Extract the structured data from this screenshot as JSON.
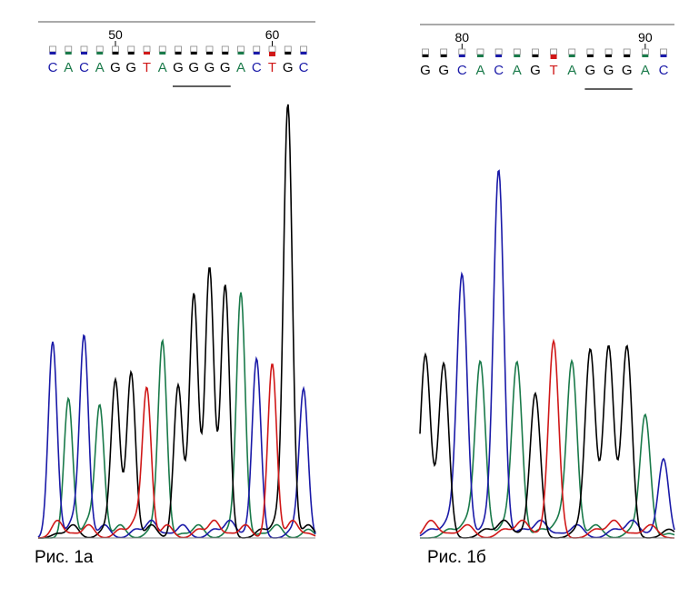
{
  "colors": {
    "A": "#1a7a4a",
    "C": "#1a1aa8",
    "G": "#000000",
    "T": "#d01818"
  },
  "panels": [
    {
      "id": "a",
      "caption": "Рис. 1а",
      "sequence": [
        "C",
        "A",
        "C",
        "A",
        "G",
        "G",
        "T",
        "A",
        "G",
        "G",
        "G",
        "G",
        "A",
        "C",
        "T",
        "G",
        "C"
      ],
      "position_labels": [
        {
          "text": "50",
          "base_index": 4
        },
        {
          "text": "60",
          "base_index": 14
        }
      ],
      "underline": {
        "from": 8,
        "to": 11
      },
      "highlighted_base": 14,
      "peak_heights": [
        0.45,
        0.32,
        0.46,
        0.3,
        0.36,
        0.38,
        0.34,
        0.45,
        0.35,
        0.56,
        0.62,
        0.58,
        0.56,
        0.41,
        0.4,
        0.99,
        0.34
      ]
    },
    {
      "id": "b",
      "caption": "Рис. 1б",
      "sequence": [
        "G",
        "G",
        "C",
        "A",
        "C",
        "A",
        "G",
        "T",
        "A",
        "G",
        "G",
        "G",
        "A",
        "C"
      ],
      "position_labels": [
        {
          "text": "80",
          "base_index": 2
        },
        {
          "text": "90",
          "base_index": 12
        }
      ],
      "underline": {
        "from": 9,
        "to": 11
      },
      "highlighted_base": 7,
      "peak_heights": [
        0.42,
        0.4,
        0.6,
        0.4,
        0.84,
        0.4,
        0.33,
        0.45,
        0.4,
        0.43,
        0.44,
        0.44,
        0.28,
        0.18
      ]
    }
  ]
}
